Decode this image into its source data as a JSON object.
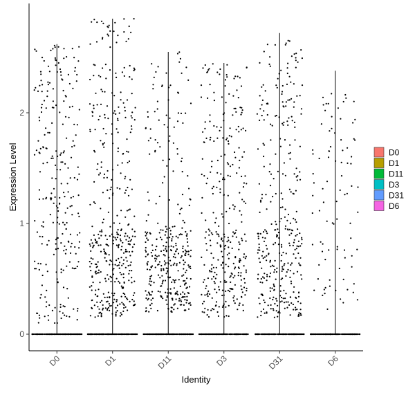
{
  "chart_data": {
    "type": "scatter",
    "subtype": "violin-jitter",
    "xlabel": "Identity",
    "ylabel": "Expression Level",
    "ylim": [
      -0.15,
      2.9
    ],
    "yticks": [
      0,
      1,
      2
    ],
    "categories": [
      "D0",
      "D1",
      "D11",
      "D3",
      "D31",
      "D6"
    ],
    "groups": [
      {
        "name": "D0",
        "color": "#F8766D",
        "max": 2.62,
        "nonzero": 260,
        "zeros": 150,
        "dist": "uniform"
      },
      {
        "name": "D1",
        "color": "#B79F00",
        "max": 2.85,
        "nonzero": 420,
        "zeros": 150,
        "dist": "skew"
      },
      {
        "name": "D11",
        "color": "#00BA38",
        "max": 2.55,
        "nonzero": 360,
        "zeros": 150,
        "dist": "low"
      },
      {
        "name": "D3",
        "color": "#00BFC4",
        "max": 2.45,
        "nonzero": 330,
        "zeros": 150,
        "dist": "skew"
      },
      {
        "name": "D31",
        "color": "#619CFF",
        "max": 2.72,
        "nonzero": 360,
        "zeros": 150,
        "dist": "skew"
      },
      {
        "name": "D6",
        "color": "#F564E3",
        "max": 2.38,
        "nonzero": 90,
        "zeros": 150,
        "dist": "sparse"
      }
    ],
    "legend": {
      "position": "right",
      "items": [
        "D0",
        "D1",
        "D11",
        "D3",
        "D31",
        "D6"
      ]
    },
    "grid": false
  }
}
